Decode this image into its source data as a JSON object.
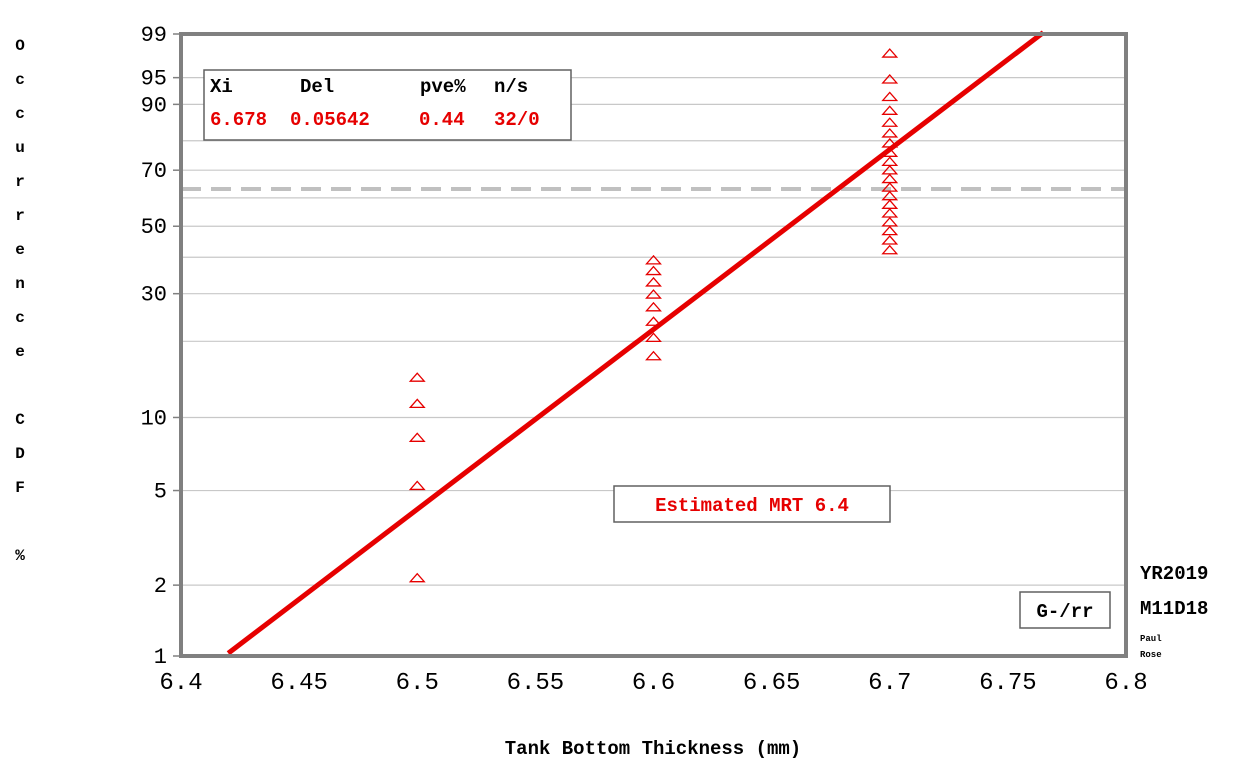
{
  "chart_data": {
    "type": "scatter",
    "xlabel": "Tank Bottom Thickness (mm)",
    "ylabel": "Occurrence CDF %",
    "y_scale": "probability (Gumbel minimum)",
    "xlim": [
      6.4,
      6.8
    ],
    "ylim": [
      1,
      99
    ],
    "x_ticks": [
      "6.4",
      "6.45",
      "6.5",
      "6.55",
      "6.6",
      "6.65",
      "6.7",
      "6.75",
      "6.8"
    ],
    "y_ticks": [
      "1",
      "2",
      "5",
      "10",
      "30",
      "50",
      "70",
      "90",
      "95",
      "99"
    ],
    "grid": true,
    "stats_box": {
      "headers": [
        "Xi",
        "Del",
        "pve%",
        "n/s"
      ],
      "values": [
        "6.678",
        "0.05642",
        "0.44",
        "32/0"
      ]
    },
    "annotation": "Estimated MRT 6.4",
    "reference_line_cdf": 63.2,
    "method_label": "G-/rr",
    "side_labels": [
      "YR2019",
      "M11D18"
    ],
    "author_lines": [
      "Paul",
      "Rose"
    ],
    "fit_line": {
      "xi": 6.678,
      "delta": 0.05642,
      "x_range": [
        6.42,
        6.765
      ]
    },
    "points": {
      "x": [
        6.5,
        6.5,
        6.5,
        6.5,
        6.5,
        6.6,
        6.6,
        6.6,
        6.6,
        6.6,
        6.6,
        6.6,
        6.6,
        6.7,
        6.7,
        6.7,
        6.7,
        6.7,
        6.7,
        6.7,
        6.7,
        6.7,
        6.7,
        6.7,
        6.7,
        6.7,
        6.7,
        6.7,
        6.7,
        6.7,
        6.7,
        6.7
      ],
      "y": [
        2.15,
        5.25,
        8.3,
        11.4,
        14.5,
        17.6,
        20.7,
        23.8,
        26.9,
        29.9,
        33.0,
        36.1,
        39.2,
        42.3,
        45.4,
        48.5,
        51.5,
        54.6,
        57.7,
        60.8,
        63.9,
        67.0,
        70.1,
        73.1,
        76.2,
        79.3,
        82.4,
        85.5,
        88.6,
        91.7,
        94.8,
        97.8
      ]
    }
  },
  "colors": {
    "fit": "#e60000",
    "points": "#e60000",
    "frame": "#808080",
    "grid": "#c8c8c8",
    "reference": "#c0c0c0",
    "text": "#000000"
  }
}
